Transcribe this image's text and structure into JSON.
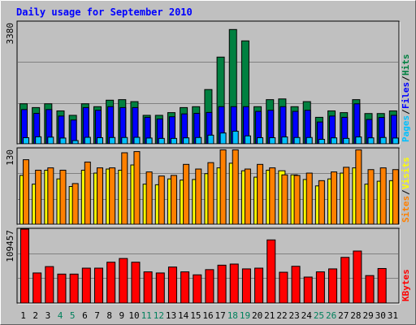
{
  "title": "Daily usage for September 2010",
  "colors": {
    "background": "#c0c0c0",
    "title": "#0000ff",
    "hits": "#008040",
    "files": "#0000ff",
    "pages": "#00c0ff",
    "visits": "#ffff00",
    "sites": "#ff8000",
    "kbytes": "#ff0000",
    "weekend_day": "#00805c",
    "weekday": "#000000"
  },
  "chart_data": [
    {
      "type": "bar",
      "title": "Hits / Files / Pages",
      "y_label_max": "3380",
      "ylim": [
        0,
        3380
      ],
      "categories": [
        "1",
        "2",
        "3",
        "4",
        "5",
        "6",
        "7",
        "8",
        "9",
        "10",
        "11",
        "12",
        "13",
        "14",
        "15",
        "16",
        "17",
        "18",
        "19",
        "20",
        "21",
        "22",
        "23",
        "24",
        "25",
        "26",
        "27",
        "28",
        "29",
        "30",
        "31"
      ],
      "legend": [
        {
          "key": "pages",
          "label": "Pages"
        },
        {
          "key": "files",
          "label": "Files"
        },
        {
          "key": "hits",
          "label": "Hits"
        }
      ],
      "series": [
        {
          "name": "Hits",
          "color_key": "hits",
          "values": [
            1110,
            1005,
            1110,
            913,
            790,
            1110,
            1030,
            1210,
            1225,
            1170,
            790,
            790,
            865,
            1005,
            1030,
            1505,
            2405,
            3170,
            2855,
            1030,
            1225,
            1245,
            1030,
            1170,
            735,
            913,
            865,
            1225,
            840,
            840,
            913
          ]
        },
        {
          "name": "Files",
          "color_key": "files",
          "values": [
            950,
            845,
            950,
            770,
            660,
            1005,
            930,
            1030,
            1005,
            1005,
            735,
            690,
            750,
            830,
            845,
            870,
            1030,
            1030,
            1030,
            900,
            930,
            1030,
            900,
            930,
            605,
            770,
            735,
            1110,
            675,
            730,
            790
          ]
        },
        {
          "name": "Pages",
          "color_key": "pages",
          "values": [
            170,
            195,
            185,
            160,
            90,
            180,
            170,
            175,
            175,
            180,
            160,
            150,
            150,
            165,
            175,
            240,
            300,
            350,
            220,
            170,
            170,
            190,
            175,
            175,
            125,
            165,
            150,
            190,
            165,
            175,
            160
          ]
        }
      ]
    },
    {
      "type": "bar",
      "title": "Visits / Sites",
      "y_label_max": "130",
      "ylim": [
        0,
        130
      ],
      "categories": [
        "1",
        "2",
        "3",
        "4",
        "5",
        "6",
        "7",
        "8",
        "9",
        "10",
        "11",
        "12",
        "13",
        "14",
        "15",
        "16",
        "17",
        "18",
        "19",
        "20",
        "21",
        "22",
        "23",
        "24",
        "25",
        "26",
        "27",
        "28",
        "29",
        "30",
        "31"
      ],
      "legend": [
        {
          "key": "sites",
          "label": "Sites"
        },
        {
          "key": "visits",
          "label": "Visits"
        }
      ],
      "series": [
        {
          "name": "Visits",
          "color_key": "visits",
          "values": [
            84,
            69,
            93,
            78,
            65,
            93,
            88,
            95,
            93,
            102,
            69,
            68,
            78,
            76,
            77,
            87,
            97,
            105,
            92,
            81,
            93,
            92,
            85,
            77,
            66,
            78,
            88,
            97,
            69,
            74,
            75
          ]
        },
        {
          "name": "Sites",
          "color_key": "sites",
          "values": [
            111,
            93,
            97,
            93,
            70,
            107,
            97,
            97,
            123,
            125,
            90,
            83,
            84,
            103,
            95,
            106,
            128,
            128,
            95,
            103,
            97,
            85,
            84,
            88,
            75,
            90,
            98,
            128,
            94,
            97,
            94
          ]
        }
      ]
    },
    {
      "type": "bar",
      "title": "KBytes",
      "y_label_max": "109457",
      "ylim": [
        0,
        109457
      ],
      "categories": [
        "1",
        "2",
        "3",
        "4",
        "5",
        "6",
        "7",
        "8",
        "9",
        "10",
        "11",
        "12",
        "13",
        "14",
        "15",
        "16",
        "17",
        "18",
        "19",
        "20",
        "21",
        "22",
        "23",
        "24",
        "25",
        "26",
        "27",
        "28",
        "29",
        "30",
        "31"
      ],
      "legend": [
        {
          "key": "kbytes",
          "label": "KBytes"
        }
      ],
      "series": [
        {
          "name": "KBytes",
          "color_key": "kbytes",
          "values": [
            109457,
            44575,
            54000,
            42900,
            42900,
            51700,
            51700,
            60500,
            66000,
            60500,
            46200,
            44575,
            53350,
            46200,
            41800,
            49500,
            56100,
            57750,
            50600,
            51700,
            93500,
            45650,
            54450,
            38500,
            46200,
            50600,
            67650,
            77000,
            40700,
            51150,
            0
          ]
        }
      ]
    }
  ]
}
